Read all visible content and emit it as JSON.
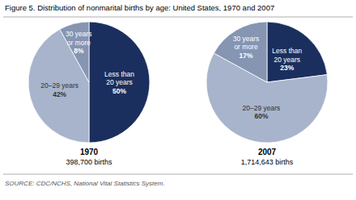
{
  "title": "Figure 5.  Distribution of nonmarital births by age: United States, 1970 and 2007",
  "annotations": [
    "SOURCE:  CDC/NCHS, National Vital Statistics System."
  ],
  "chart_data": [
    {
      "type": "pie",
      "title": "1970",
      "subtitle": "398,700 births",
      "categories": [
        "Less than\n20 years",
        "20–29 years",
        "30 years\nor more"
      ],
      "values": [
        50,
        42,
        8
      ],
      "value_labels": [
        "50%",
        "42%",
        "8%"
      ],
      "colors": [
        "#1b2f5e",
        "#a8b4cc",
        "#8595b2"
      ],
      "data_labels": true
    },
    {
      "type": "pie",
      "title": "2007",
      "subtitle": "1,714,643 births",
      "categories": [
        "Less than\n20 years",
        "20–29 years",
        "30 years\nor more"
      ],
      "values": [
        23,
        60,
        17
      ],
      "value_labels": [
        "23%",
        "60%",
        "17%"
      ],
      "colors": [
        "#1b2f5e",
        "#a8b4cc",
        "#8595b2"
      ],
      "data_labels": true
    }
  ]
}
